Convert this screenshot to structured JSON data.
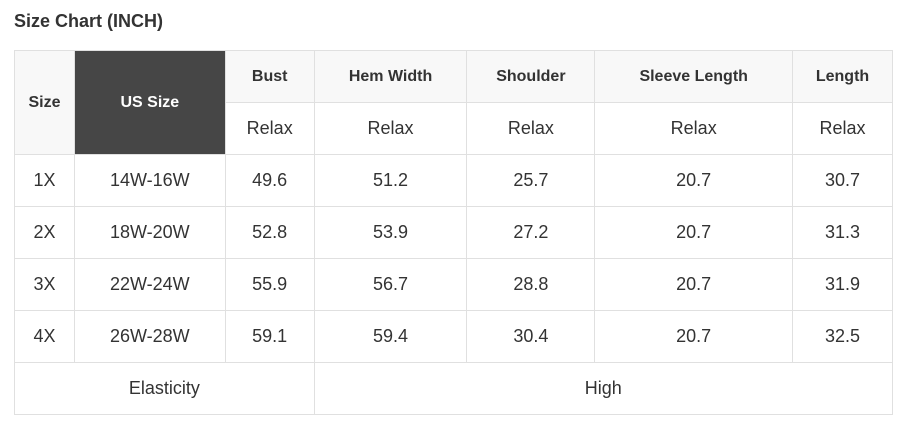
{
  "title": "Size Chart (INCH)",
  "headers": {
    "size": "Size",
    "us_size": "US Size",
    "columns": [
      "Bust",
      "Hem Width",
      "Shoulder",
      "Sleeve Length",
      "Length"
    ],
    "sub": [
      "Relax",
      "Relax",
      "Relax",
      "Relax",
      "Relax"
    ]
  },
  "rows": [
    [
      "1X",
      "14W-16W",
      "49.6",
      "51.2",
      "25.7",
      "20.7",
      "30.7"
    ],
    [
      "2X",
      "18W-20W",
      "52.8",
      "53.9",
      "27.2",
      "20.7",
      "31.3"
    ],
    [
      "3X",
      "22W-24W",
      "55.9",
      "56.7",
      "28.8",
      "20.7",
      "31.9"
    ],
    [
      "4X",
      "26W-28W",
      "59.1",
      "59.4",
      "30.4",
      "20.7",
      "32.5"
    ]
  ],
  "elasticity": {
    "label": "Elasticity",
    "value": "High"
  }
}
